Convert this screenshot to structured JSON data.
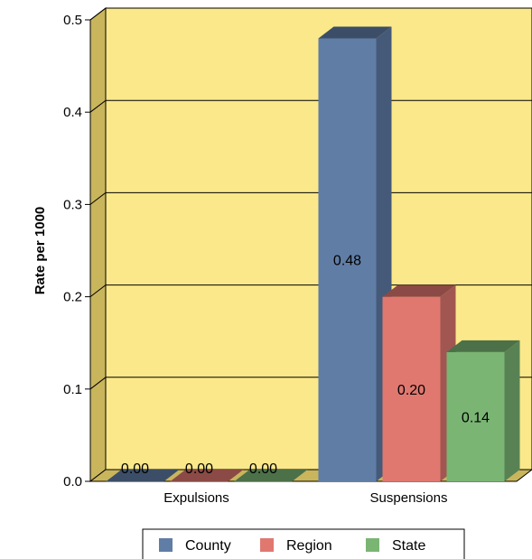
{
  "chart_data": {
    "type": "bar",
    "title": "",
    "xlabel": "",
    "ylabel": "Rate per 1000",
    "categories": [
      "Expulsions",
      "Suspensions"
    ],
    "series": [
      {
        "name": "County",
        "values": [
          0.0,
          0.48
        ],
        "labels": [
          "0.00",
          "0.48"
        ],
        "color": "#607da6"
      },
      {
        "name": "Region",
        "values": [
          0.0,
          0.2
        ],
        "labels": [
          "0.00",
          "0.20"
        ],
        "color": "#e07870"
      },
      {
        "name": "State",
        "values": [
          0.0,
          0.14
        ],
        "labels": [
          "0.00",
          "0.14"
        ],
        "color": "#7ab574"
      }
    ],
    "ylim": [
      0,
      0.5
    ],
    "yticks": [
      "0.0",
      "0.1",
      "0.2",
      "0.3",
      "0.4",
      "0.5"
    ],
    "grid": true,
    "legend": "bottom",
    "background_color": "#fae88a",
    "wall_color": "#c9b55c"
  }
}
